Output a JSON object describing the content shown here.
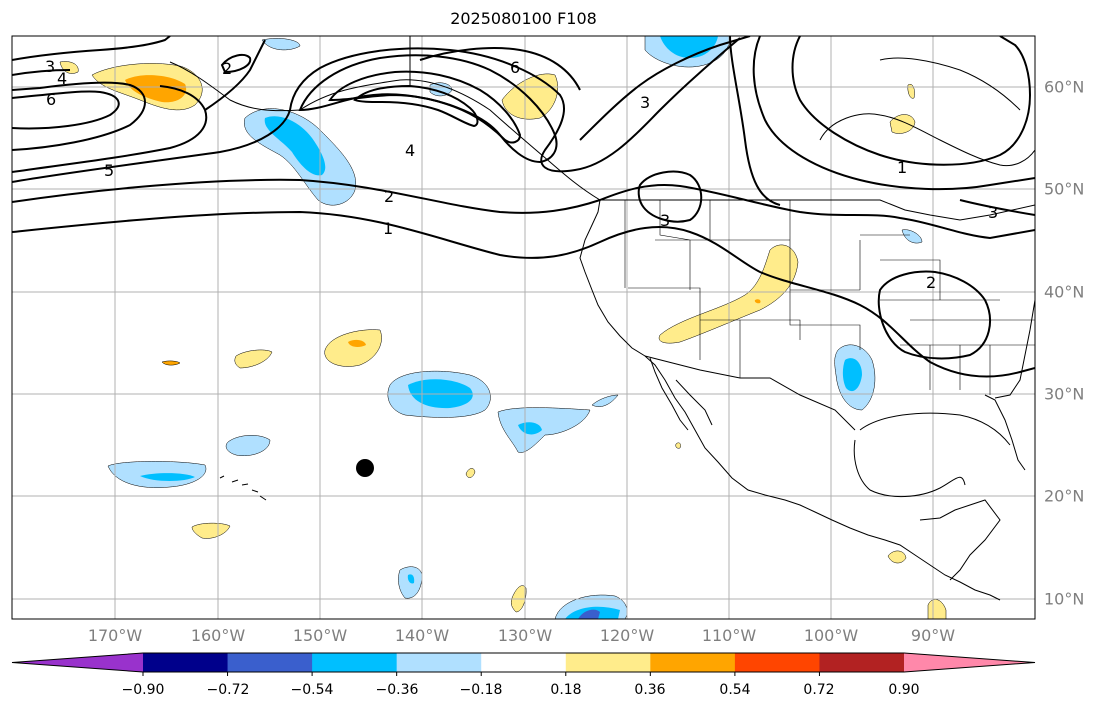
{
  "title": "2025080100 F108",
  "lon_labels": [
    "170°W",
    "160°W",
    "150°W",
    "140°W",
    "130°W",
    "120°W",
    "110°W",
    "100°W",
    "90°W"
  ],
  "lat_labels": [
    "60°N",
    "50°N",
    "40°N",
    "30°N",
    "20°N",
    "10°N"
  ],
  "colorbar": {
    "tick_labels": [
      "−0.90",
      "−0.72",
      "−0.54",
      "−0.36",
      "−0.18",
      "0.18",
      "0.36",
      "0.54",
      "0.72",
      "0.90"
    ],
    "colors": [
      "#9932cc",
      "#00008b",
      "#3a5fcd",
      "#00bfff",
      "#b0e0ff",
      "#ffffff",
      "#ffec8b",
      "#ffa500",
      "#ff4500",
      "#b22222",
      "#ff88aa"
    ]
  },
  "contour_labels": {
    "c1": "3",
    "c2": "4",
    "c3": "6",
    "c4": "2",
    "c5": "5",
    "c6": "4",
    "c7": "2",
    "c8": "1",
    "c9": "6",
    "c10": "3",
    "c11": "1",
    "c12": "3",
    "c13": "2",
    "c14": "3"
  }
}
